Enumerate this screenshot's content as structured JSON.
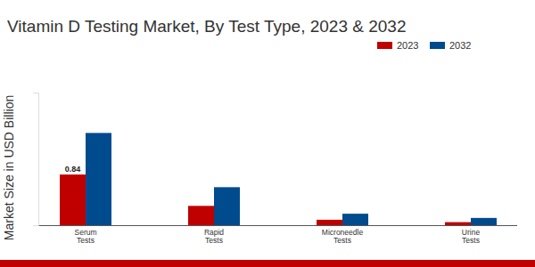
{
  "chart_data": {
    "type": "bar",
    "title": "Vitamin D Testing Market, By Test Type, 2023 & 2032",
    "y_label": "Market Size in USD Billion",
    "categories": [
      "Serum Tests",
      "Rapid Tests",
      "Microneedle Tests",
      "Urine Tests"
    ],
    "series": [
      {
        "name": "2023",
        "color": "#c00000",
        "values": [
          0.84,
          0.32,
          0.09,
          0.05
        ],
        "value_labels": [
          "0.84",
          null,
          null,
          null
        ]
      },
      {
        "name": "2032",
        "color": "#004b8d",
        "values": [
          1.53,
          0.63,
          0.19,
          0.12
        ]
      }
    ],
    "ylim": [
      0,
      2.2
    ],
    "yticks": [],
    "grid": false,
    "legend": "top-right",
    "data_labels": true,
    "tick_labels": "x"
  }
}
